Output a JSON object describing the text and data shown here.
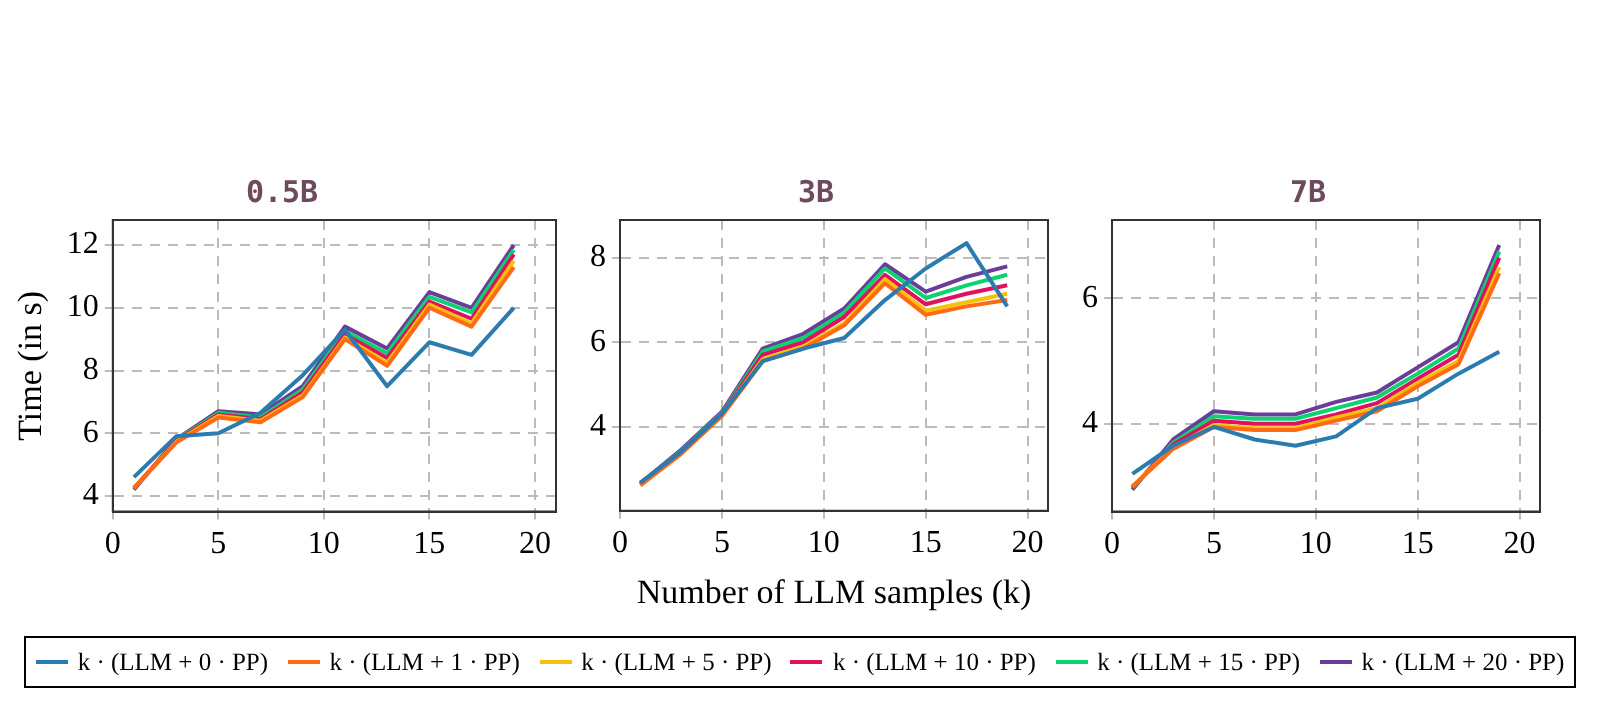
{
  "chart_data": [
    {
      "type": "line",
      "title": "0.5B",
      "ylabel": "Time (in s)",
      "x": [
        1,
        3,
        5,
        7,
        9,
        11,
        13,
        15,
        17,
        19
      ],
      "xlim": [
        0,
        21
      ],
      "xticks": [
        0,
        5,
        10,
        15,
        20
      ],
      "ylim": [
        3.5,
        12.8
      ],
      "yticks": [
        4,
        6,
        8,
        10,
        12
      ],
      "grid": true,
      "legend": "bottom",
      "marker": "none",
      "line_style": "solid",
      "series": [
        {
          "name": "k · (LLM + 0 · PP)",
          "color": "#2b7bb0",
          "values": [
            4.6,
            5.9,
            6.0,
            6.65,
            7.85,
            9.3,
            7.5,
            8.9,
            8.5,
            10.0
          ]
        },
        {
          "name": "k · (LLM + 1 · PP)",
          "color": "#ff6a13",
          "values": [
            4.25,
            5.7,
            6.5,
            6.35,
            7.15,
            9.0,
            8.15,
            10.0,
            9.4,
            11.3
          ]
        },
        {
          "name": "k · (LLM + 5 · PP)",
          "color": "#f4c20d",
          "values": [
            4.25,
            5.72,
            6.55,
            6.4,
            7.2,
            9.05,
            8.25,
            10.1,
            9.5,
            11.5
          ]
        },
        {
          "name": "k · (LLM + 10 · PP)",
          "color": "#e0115f",
          "values": [
            4.25,
            5.75,
            6.6,
            6.45,
            7.3,
            9.15,
            8.4,
            10.2,
            9.65,
            11.7
          ]
        },
        {
          "name": "k · (LLM + 15 · PP)",
          "color": "#0bd36f",
          "values": [
            null,
            5.78,
            6.65,
            6.5,
            7.4,
            9.25,
            8.55,
            10.35,
            9.85,
            11.85
          ]
        },
        {
          "name": "k · (LLM + 20 · PP)",
          "color": "#6a3d9a",
          "values": [
            4.2,
            5.8,
            6.7,
            6.6,
            7.5,
            9.4,
            8.7,
            10.5,
            10.0,
            12.0
          ]
        }
      ]
    },
    {
      "type": "line",
      "title": "3B",
      "xlabel": "Number of LLM samples (k)",
      "x": [
        1,
        3,
        5,
        7,
        9,
        11,
        13,
        15,
        17,
        19
      ],
      "xlim": [
        0,
        21
      ],
      "xticks": [
        0,
        5,
        10,
        15,
        20
      ],
      "ylim": [
        2,
        8.9
      ],
      "yticks": [
        4,
        6,
        8
      ],
      "grid": true,
      "marker": "none",
      "line_style": "solid",
      "series": [
        {
          "color": "#2b7bb0",
          "values": [
            2.67,
            3.4,
            4.3,
            5.55,
            5.85,
            6.1,
            7.0,
            7.75,
            8.35,
            6.85
          ]
        },
        {
          "color": "#ff6a13",
          "values": [
            2.6,
            3.35,
            4.25,
            5.55,
            5.85,
            6.4,
            7.4,
            6.65,
            6.85,
            7.0
          ]
        },
        {
          "color": "#f4c20d",
          "values": [
            null,
            null,
            4.28,
            5.6,
            5.9,
            6.45,
            7.5,
            6.75,
            6.95,
            7.15
          ]
        },
        {
          "color": "#e0115f",
          "values": [
            2.63,
            3.4,
            4.3,
            5.7,
            6.0,
            6.6,
            7.6,
            6.9,
            7.15,
            7.35
          ]
        },
        {
          "color": "#0bd36f",
          "values": [
            2.64,
            3.42,
            4.32,
            5.78,
            6.1,
            6.7,
            7.75,
            7.05,
            7.35,
            7.6
          ]
        },
        {
          "color": "#6a3d9a",
          "values": [
            2.65,
            3.45,
            4.35,
            5.85,
            6.2,
            6.8,
            7.85,
            7.2,
            7.55,
            7.8
          ]
        }
      ]
    },
    {
      "type": "line",
      "title": "7B",
      "x": [
        1,
        3,
        5,
        7,
        9,
        11,
        13,
        15,
        17,
        19
      ],
      "xlim": [
        0,
        21
      ],
      "xticks": [
        0,
        5,
        10,
        15,
        20
      ],
      "ylim": [
        2.6,
        7.25
      ],
      "yticks": [
        4,
        6
      ],
      "grid": true,
      "marker": "none",
      "line_style": "solid",
      "series": [
        {
          "color": "#2b7bb0",
          "values": [
            3.2,
            3.65,
            3.95,
            3.75,
            3.65,
            3.8,
            4.25,
            4.4,
            4.8,
            5.15
          ]
        },
        {
          "color": "#ff6a13",
          "values": [
            3.0,
            3.6,
            3.95,
            3.9,
            3.9,
            4.05,
            4.2,
            4.6,
            4.95,
            6.4
          ]
        },
        {
          "color": "#f4c20d",
          "values": [
            3.0,
            3.62,
            3.98,
            3.93,
            3.93,
            4.1,
            4.25,
            4.65,
            5.0,
            6.5
          ]
        },
        {
          "color": "#e0115f",
          "values": [
            2.98,
            3.67,
            4.05,
            4.0,
            4.0,
            4.15,
            4.33,
            4.72,
            5.1,
            6.65
          ]
        },
        {
          "color": "#0bd36f",
          "values": [
            2.97,
            3.7,
            4.12,
            4.08,
            4.08,
            4.25,
            4.42,
            4.8,
            5.2,
            6.75
          ]
        },
        {
          "color": "#6a3d9a",
          "values": [
            2.95,
            3.75,
            4.2,
            4.15,
            4.15,
            4.35,
            4.5,
            4.9,
            5.3,
            6.85
          ]
        }
      ]
    }
  ]
}
